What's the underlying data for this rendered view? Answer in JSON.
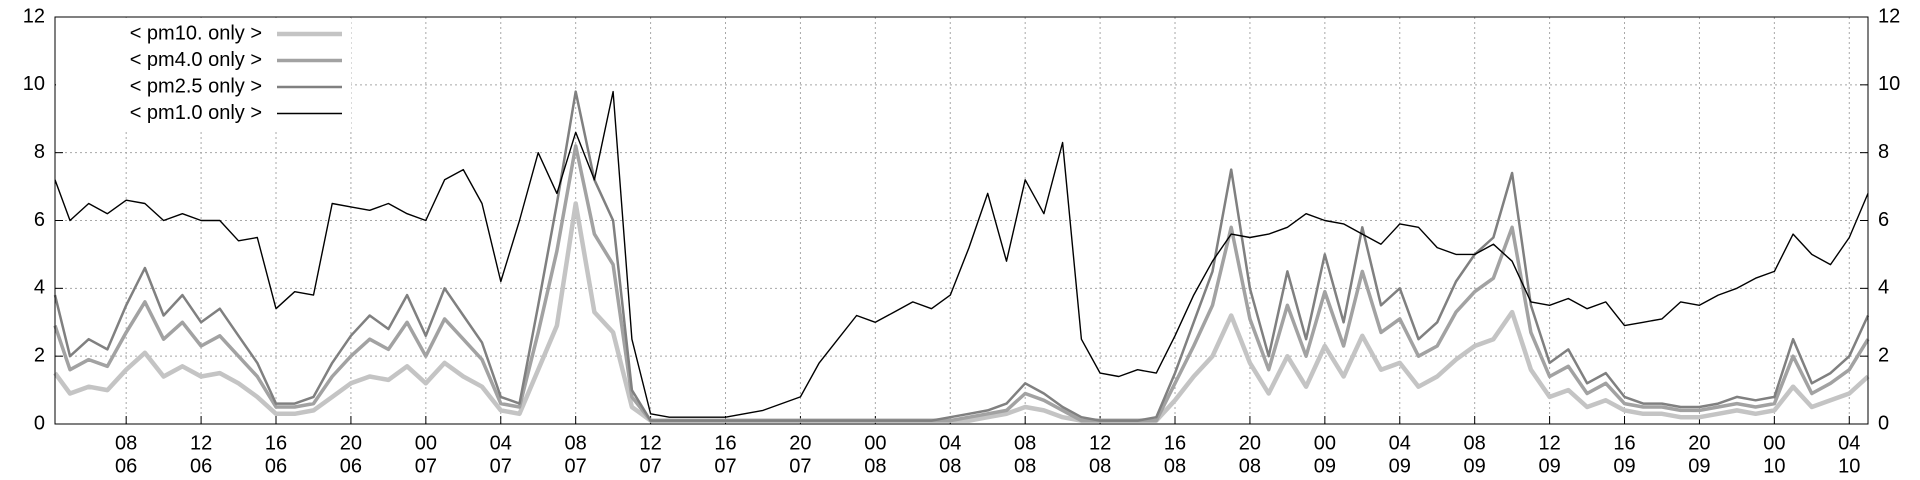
{
  "chart_data": {
    "type": "line",
    "x": [
      4.2,
      5,
      6,
      7,
      8,
      9,
      10,
      11,
      12,
      13,
      14,
      15,
      16,
      17,
      18,
      19,
      20,
      21,
      22,
      23,
      24,
      25,
      26,
      27,
      28,
      29,
      30,
      31,
      32,
      33,
      34,
      35,
      36,
      37,
      38,
      39,
      40,
      41,
      42,
      43,
      44,
      45,
      46,
      47,
      48,
      49,
      50,
      51,
      52,
      53,
      54,
      55,
      56,
      57,
      58,
      59,
      60,
      61,
      62,
      63,
      64,
      65,
      66,
      67,
      68,
      69,
      70,
      71,
      72,
      73,
      74,
      75,
      76,
      77,
      78,
      79,
      80,
      81,
      82,
      83,
      84,
      85,
      86,
      87,
      88,
      89,
      90,
      91,
      92,
      93,
      94,
      95,
      96,
      97,
      98,
      99,
      100,
      101
    ],
    "series": [
      {
        "name": "< pm10. only >",
        "color": "#c4c4c4",
        "line_width": 4.5,
        "values": [
          1.5,
          0.9,
          1.1,
          1.0,
          1.6,
          2.1,
          1.4,
          1.7,
          1.4,
          1.5,
          1.2,
          0.8,
          0.3,
          0.3,
          0.4,
          0.8,
          1.2,
          1.4,
          1.3,
          1.7,
          1.2,
          1.8,
          1.4,
          1.1,
          0.4,
          0.3,
          1.6,
          2.9,
          6.5,
          3.3,
          2.7,
          0.5,
          0.1,
          0.1,
          0.1,
          0.1,
          0.1,
          0.1,
          0.1,
          0.1,
          0.1,
          0.1,
          0.1,
          0.1,
          0.1,
          0.1,
          0.1,
          0.1,
          0.1,
          0.1,
          0.2,
          0.3,
          0.5,
          0.4,
          0.2,
          0.1,
          0.1,
          0.1,
          0.1,
          0.1,
          0.7,
          1.4,
          2.0,
          3.2,
          1.8,
          0.9,
          2.0,
          1.1,
          2.3,
          1.4,
          2.6,
          1.6,
          1.8,
          1.1,
          1.4,
          1.9,
          2.3,
          2.5,
          3.3,
          1.6,
          0.8,
          1.0,
          0.5,
          0.7,
          0.4,
          0.3,
          0.3,
          0.2,
          0.2,
          0.3,
          0.4,
          0.3,
          0.4,
          1.1,
          0.5,
          0.7,
          0.9,
          1.4
        ]
      },
      {
        "name": "< pm4.0 only >",
        "color": "#a2a2a2",
        "line_width": 3.5,
        "values": [
          2.9,
          1.6,
          1.9,
          1.7,
          2.7,
          3.6,
          2.5,
          3.0,
          2.3,
          2.6,
          2.0,
          1.4,
          0.5,
          0.5,
          0.6,
          1.4,
          2.0,
          2.5,
          2.2,
          3.0,
          2.0,
          3.1,
          2.5,
          1.9,
          0.6,
          0.5,
          2.7,
          5.1,
          8.2,
          5.6,
          4.7,
          0.8,
          0.1,
          0.1,
          0.1,
          0.1,
          0.1,
          0.1,
          0.1,
          0.1,
          0.1,
          0.1,
          0.1,
          0.1,
          0.1,
          0.1,
          0.1,
          0.1,
          0.1,
          0.2,
          0.3,
          0.4,
          0.9,
          0.7,
          0.4,
          0.1,
          0.1,
          0.1,
          0.1,
          0.1,
          1.2,
          2.3,
          3.5,
          5.8,
          3.1,
          1.6,
          3.5,
          2.0,
          3.9,
          2.3,
          4.5,
          2.7,
          3.1,
          2.0,
          2.3,
          3.3,
          3.9,
          4.3,
          5.8,
          2.7,
          1.4,
          1.7,
          0.9,
          1.2,
          0.6,
          0.5,
          0.5,
          0.4,
          0.4,
          0.5,
          0.6,
          0.5,
          0.6,
          2.0,
          0.9,
          1.2,
          1.6,
          2.5
        ]
      },
      {
        "name": "< pm2.5 only >",
        "color": "#808080",
        "line_width": 2.5,
        "values": [
          3.8,
          2.0,
          2.5,
          2.2,
          3.5,
          4.6,
          3.2,
          3.8,
          3.0,
          3.4,
          2.6,
          1.8,
          0.6,
          0.6,
          0.8,
          1.8,
          2.6,
          3.2,
          2.8,
          3.8,
          2.6,
          4.0,
          3.2,
          2.4,
          0.8,
          0.6,
          3.5,
          6.5,
          9.8,
          7.2,
          6.0,
          1.0,
          0.1,
          0.1,
          0.1,
          0.1,
          0.1,
          0.1,
          0.1,
          0.1,
          0.1,
          0.1,
          0.1,
          0.1,
          0.1,
          0.1,
          0.1,
          0.1,
          0.2,
          0.3,
          0.4,
          0.6,
          1.2,
          0.9,
          0.5,
          0.2,
          0.1,
          0.1,
          0.1,
          0.2,
          1.5,
          3.0,
          4.5,
          7.5,
          4.0,
          2.0,
          4.5,
          2.5,
          5.0,
          3.0,
          5.8,
          3.5,
          4.0,
          2.5,
          3.0,
          4.2,
          5.0,
          5.5,
          7.4,
          3.5,
          1.8,
          2.2,
          1.2,
          1.5,
          0.8,
          0.6,
          0.6,
          0.5,
          0.5,
          0.6,
          0.8,
          0.7,
          0.8,
          2.5,
          1.2,
          1.5,
          2.0,
          3.2
        ]
      },
      {
        "name": "< pm1.0 only >",
        "color": "#000000",
        "line_width": 1.4,
        "values": [
          7.2,
          6.0,
          6.5,
          6.2,
          6.6,
          6.5,
          6.0,
          6.2,
          6.0,
          6.0,
          5.4,
          5.5,
          3.4,
          3.9,
          3.8,
          6.5,
          6.4,
          6.3,
          6.5,
          6.2,
          6.0,
          7.2,
          7.5,
          6.5,
          4.2,
          6.0,
          8.0,
          6.8,
          8.6,
          7.2,
          9.8,
          2.5,
          0.3,
          0.2,
          0.2,
          0.2,
          0.2,
          0.3,
          0.4,
          0.6,
          0.8,
          1.8,
          2.5,
          3.2,
          3.0,
          3.3,
          3.6,
          3.4,
          3.8,
          5.2,
          6.8,
          4.8,
          7.2,
          6.2,
          8.3,
          2.5,
          1.5,
          1.4,
          1.6,
          1.5,
          2.6,
          3.8,
          4.8,
          5.6,
          5.5,
          5.6,
          5.8,
          6.2,
          6.0,
          5.9,
          5.6,
          5.3,
          5.9,
          5.8,
          5.2,
          5.0,
          5.0,
          5.3,
          4.8,
          3.6,
          3.5,
          3.7,
          3.4,
          3.6,
          2.9,
          3.0,
          3.1,
          3.6,
          3.5,
          3.8,
          4.0,
          4.3,
          4.5,
          5.6,
          5.0,
          4.7,
          5.5,
          6.8
        ]
      }
    ],
    "xlim": [
      4.2,
      101
    ],
    "xticks": [
      {
        "value": 8,
        "label": [
          "08",
          "06"
        ]
      },
      {
        "value": 12,
        "label": [
          "12",
          "06"
        ]
      },
      {
        "value": 16,
        "label": [
          "16",
          "06"
        ]
      },
      {
        "value": 20,
        "label": [
          "20",
          "06"
        ]
      },
      {
        "value": 24,
        "label": [
          "00",
          "07"
        ]
      },
      {
        "value": 28,
        "label": [
          "04",
          "07"
        ]
      },
      {
        "value": 32,
        "label": [
          "08",
          "07"
        ]
      },
      {
        "value": 36,
        "label": [
          "12",
          "07"
        ]
      },
      {
        "value": 40,
        "label": [
          "16",
          "07"
        ]
      },
      {
        "value": 44,
        "label": [
          "20",
          "07"
        ]
      },
      {
        "value": 48,
        "label": [
          "00",
          "08"
        ]
      },
      {
        "value": 52,
        "label": [
          "04",
          "08"
        ]
      },
      {
        "value": 56,
        "label": [
          "08",
          "08"
        ]
      },
      {
        "value": 60,
        "label": [
          "12",
          "08"
        ]
      },
      {
        "value": 64,
        "label": [
          "16",
          "08"
        ]
      },
      {
        "value": 68,
        "label": [
          "20",
          "08"
        ]
      },
      {
        "value": 72,
        "label": [
          "00",
          "09"
        ]
      },
      {
        "value": 76,
        "label": [
          "04",
          "09"
        ]
      },
      {
        "value": 80,
        "label": [
          "08",
          "09"
        ]
      },
      {
        "value": 84,
        "label": [
          "12",
          "09"
        ]
      },
      {
        "value": 88,
        "label": [
          "16",
          "09"
        ]
      },
      {
        "value": 92,
        "label": [
          "20",
          "09"
        ]
      },
      {
        "value": 96,
        "label": [
          "00",
          "10"
        ]
      },
      {
        "value": 100,
        "label": [
          "04",
          "10"
        ]
      }
    ],
    "ylim": [
      0,
      12
    ],
    "yticks": [
      0,
      2,
      4,
      6,
      8,
      10,
      12
    ],
    "y2lim": [
      0,
      12
    ],
    "y2ticks": [
      0,
      2,
      4,
      6,
      8,
      10,
      12
    ],
    "grid": true,
    "legend": "upper-left"
  }
}
